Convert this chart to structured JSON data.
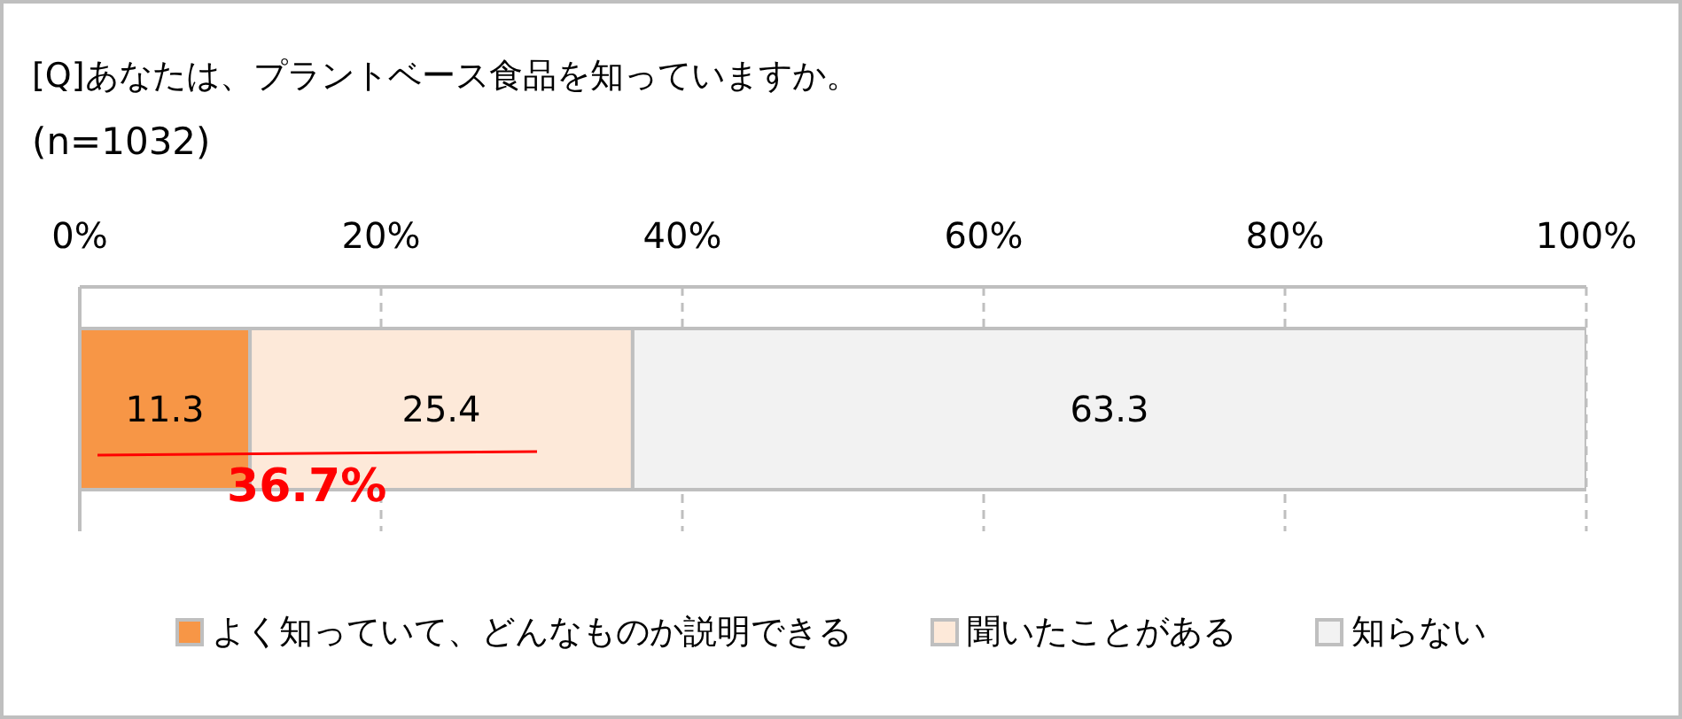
{
  "chart_data": {
    "type": "bar",
    "orientation": "horizontal",
    "stacked": true,
    "title": "[Q]あなたは、プラントベース食品を知っていますか。",
    "subtitle": "(n=1032)",
    "categories": [
      null
    ],
    "series": [
      {
        "name": "よく知っていて、どんなものか説明できる",
        "color": "#f79646",
        "values": [
          11.3
        ]
      },
      {
        "name": "聞いたことがある",
        "color": "#fde9d9",
        "values": [
          25.4
        ]
      },
      {
        "name": "知らない",
        "color": "#f2f2f2",
        "values": [
          63.3
        ]
      }
    ],
    "xlim": [
      0,
      100
    ],
    "xticks": [
      {
        "value": 0,
        "label": "0%"
      },
      {
        "value": 20,
        "label": "20%"
      },
      {
        "value": 40,
        "label": "40%"
      },
      {
        "value": 60,
        "label": "60%"
      },
      {
        "value": 80,
        "label": "80%"
      },
      {
        "value": 100,
        "label": "100%"
      }
    ],
    "grid": "x",
    "legend": "bottom",
    "data_labels": true,
    "annotations": [
      "36.7%"
    ]
  }
}
